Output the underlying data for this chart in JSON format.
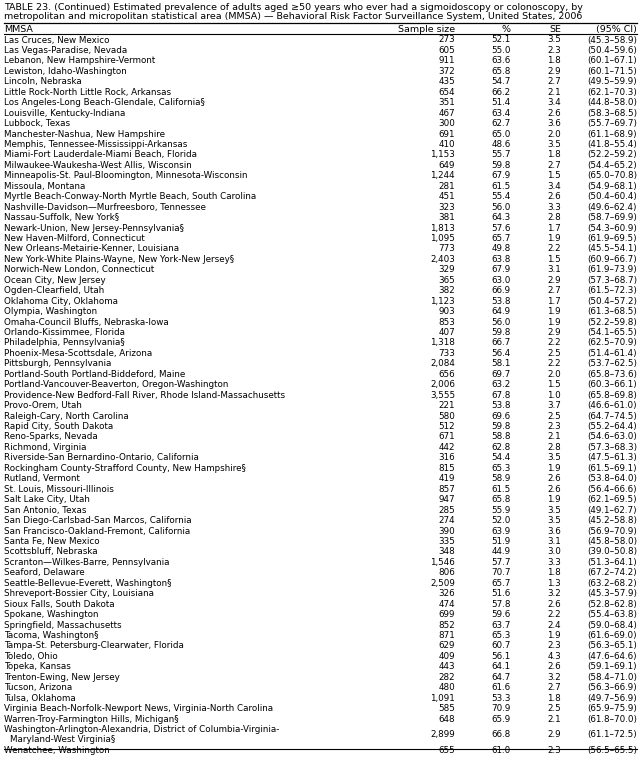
{
  "title_line1": "TABLE 23. (Continued) Estimated prevalence of adults aged ≥50 years who ever had a sigmoidoscopy or colonoscopy, by",
  "title_line2": "metropolitan and micropolitan statistical area (MMSA) — Behavioral Risk Factor Surveillance System, United States, 2006",
  "headers": [
    "MMSA",
    "Sample size",
    "%",
    "SE",
    "(95% CI)"
  ],
  "rows": [
    [
      "Las Cruces, New Mexico",
      "273",
      "52.1",
      "3.5",
      "(45.3–58.9)"
    ],
    [
      "Las Vegas-Paradise, Nevada",
      "605",
      "55.0",
      "2.3",
      "(50.4–59.6)"
    ],
    [
      "Lebanon, New Hampshire-Vermont",
      "911",
      "63.6",
      "1.8",
      "(60.1–67.1)"
    ],
    [
      "Lewiston, Idaho-Washington",
      "372",
      "65.8",
      "2.9",
      "(60.1–71.5)"
    ],
    [
      "Lincoln, Nebraska",
      "435",
      "54.7",
      "2.7",
      "(49.5–59.9)"
    ],
    [
      "Little Rock-North Little Rock, Arkansas",
      "654",
      "66.2",
      "2.1",
      "(62.1–70.3)"
    ],
    [
      "Los Angeles-Long Beach-Glendale, California§",
      "351",
      "51.4",
      "3.4",
      "(44.8–58.0)"
    ],
    [
      "Louisville, Kentucky-Indiana",
      "467",
      "63.4",
      "2.6",
      "(58.3–68.5)"
    ],
    [
      "Lubbock, Texas",
      "300",
      "62.7",
      "3.6",
      "(55.7–69.7)"
    ],
    [
      "Manchester-Nashua, New Hampshire",
      "691",
      "65.0",
      "2.0",
      "(61.1–68.9)"
    ],
    [
      "Memphis, Tennessee-Mississippi-Arkansas",
      "410",
      "48.6",
      "3.5",
      "(41.8–55.4)"
    ],
    [
      "Miami-Fort Lauderdale-Miami Beach, Florida",
      "1,153",
      "55.7",
      "1.8",
      "(52.2–59.2)"
    ],
    [
      "Milwaukee-Waukesha-West Allis, Wisconsin",
      "649",
      "59.8",
      "2.7",
      "(54.4–65.2)"
    ],
    [
      "Minneapolis-St. Paul-Bloomington, Minnesota-Wisconsin",
      "1,244",
      "67.9",
      "1.5",
      "(65.0–70.8)"
    ],
    [
      "Missoula, Montana",
      "281",
      "61.5",
      "3.4",
      "(54.9–68.1)"
    ],
    [
      "Myrtle Beach-Conway-North Myrtle Beach, South Carolina",
      "451",
      "55.4",
      "2.6",
      "(50.4–60.4)"
    ],
    [
      "Nashville-Davidson—Murfreesboro, Tennessee",
      "323",
      "56.0",
      "3.3",
      "(49.6–62.4)"
    ],
    [
      "Nassau-Suffolk, New York§",
      "381",
      "64.3",
      "2.8",
      "(58.7–69.9)"
    ],
    [
      "Newark-Union, New Jersey-Pennsylvania§",
      "1,813",
      "57.6",
      "1.7",
      "(54.3–60.9)"
    ],
    [
      "New Haven-Milford, Connecticut",
      "1,095",
      "65.7",
      "1.9",
      "(61.9–69.5)"
    ],
    [
      "New Orleans-Metairie-Kenner, Louisiana",
      "773",
      "49.8",
      "2.2",
      "(45.5–54.1)"
    ],
    [
      "New York-White Plains-Wayne, New York-New Jersey§",
      "2,403",
      "63.8",
      "1.5",
      "(60.9–66.7)"
    ],
    [
      "Norwich-New London, Connecticut",
      "329",
      "67.9",
      "3.1",
      "(61.9–73.9)"
    ],
    [
      "Ocean City, New Jersey",
      "365",
      "63.0",
      "2.9",
      "(57.3–68.7)"
    ],
    [
      "Ogden-Clearfield, Utah",
      "382",
      "66.9",
      "2.7",
      "(61.5–72.3)"
    ],
    [
      "Oklahoma City, Oklahoma",
      "1,123",
      "53.8",
      "1.7",
      "(50.4–57.2)"
    ],
    [
      "Olympia, Washington",
      "903",
      "64.9",
      "1.9",
      "(61.3–68.5)"
    ],
    [
      "Omaha-Council Bluffs, Nebraska-Iowa",
      "853",
      "56.0",
      "1.9",
      "(52.2–59.8)"
    ],
    [
      "Orlando-Kissimmee, Florida",
      "407",
      "59.8",
      "2.9",
      "(54.1–65.5)"
    ],
    [
      "Philadelphia, Pennsylvania§",
      "1,318",
      "66.7",
      "2.2",
      "(62.5–70.9)"
    ],
    [
      "Phoenix-Mesa-Scottsdale, Arizona",
      "733",
      "56.4",
      "2.5",
      "(51.4–61.4)"
    ],
    [
      "Pittsburgh, Pennsylvania",
      "2,084",
      "58.1",
      "2.2",
      "(53.7–62.5)"
    ],
    [
      "Portland-South Portland-Biddeford, Maine",
      "656",
      "69.7",
      "2.0",
      "(65.8–73.6)"
    ],
    [
      "Portland-Vancouver-Beaverton, Oregon-Washington",
      "2,006",
      "63.2",
      "1.5",
      "(60.3–66.1)"
    ],
    [
      "Providence-New Bedford-Fall River, Rhode Island-Massachusetts",
      "3,555",
      "67.8",
      "1.0",
      "(65.8–69.8)"
    ],
    [
      "Provo-Orem, Utah",
      "221",
      "53.8",
      "3.7",
      "(46.6–61.0)"
    ],
    [
      "Raleigh-Cary, North Carolina",
      "580",
      "69.6",
      "2.5",
      "(64.7–74.5)"
    ],
    [
      "Rapid City, South Dakota",
      "512",
      "59.8",
      "2.3",
      "(55.2–64.4)"
    ],
    [
      "Reno-Sparks, Nevada",
      "671",
      "58.8",
      "2.1",
      "(54.6–63.0)"
    ],
    [
      "Richmond, Virginia",
      "442",
      "62.8",
      "2.8",
      "(57.3–68.3)"
    ],
    [
      "Riverside-San Bernardino-Ontario, California",
      "316",
      "54.4",
      "3.5",
      "(47.5–61.3)"
    ],
    [
      "Rockingham County-Strafford County, New Hampshire§",
      "815",
      "65.3",
      "1.9",
      "(61.5–69.1)"
    ],
    [
      "Rutland, Vermont",
      "419",
      "58.9",
      "2.6",
      "(53.8–64.0)"
    ],
    [
      "St. Louis, Missouri-Illinois",
      "857",
      "61.5",
      "2.6",
      "(56.4–66.6)"
    ],
    [
      "Salt Lake City, Utah",
      "947",
      "65.8",
      "1.9",
      "(62.1–69.5)"
    ],
    [
      "San Antonio, Texas",
      "285",
      "55.9",
      "3.5",
      "(49.1–62.7)"
    ],
    [
      "San Diego-Carlsbad-San Marcos, California",
      "274",
      "52.0",
      "3.5",
      "(45.2–58.8)"
    ],
    [
      "San Francisco-Oakland-Fremont, California",
      "390",
      "63.9",
      "3.6",
      "(56.9–70.9)"
    ],
    [
      "Santa Fe, New Mexico",
      "335",
      "51.9",
      "3.1",
      "(45.8–58.0)"
    ],
    [
      "Scottsbluff, Nebraska",
      "348",
      "44.9",
      "3.0",
      "(39.0–50.8)"
    ],
    [
      "Scranton—Wilkes-Barre, Pennsylvania",
      "1,546",
      "57.7",
      "3.3",
      "(51.3–64.1)"
    ],
    [
      "Seaford, Delaware",
      "806",
      "70.7",
      "1.8",
      "(67.2–74.2)"
    ],
    [
      "Seattle-Bellevue-Everett, Washington§",
      "2,509",
      "65.7",
      "1.3",
      "(63.2–68.2)"
    ],
    [
      "Shreveport-Bossier City, Louisiana",
      "326",
      "51.6",
      "3.2",
      "(45.3–57.9)"
    ],
    [
      "Sioux Falls, South Dakota",
      "474",
      "57.8",
      "2.6",
      "(52.8–62.8)"
    ],
    [
      "Spokane, Washington",
      "699",
      "59.6",
      "2.2",
      "(55.4–63.8)"
    ],
    [
      "Springfield, Massachusetts",
      "852",
      "63.7",
      "2.4",
      "(59.0–68.4)"
    ],
    [
      "Tacoma, Washington§",
      "871",
      "65.3",
      "1.9",
      "(61.6–69.0)"
    ],
    [
      "Tampa-St. Petersburg-Clearwater, Florida",
      "629",
      "60.7",
      "2.3",
      "(56.3–65.1)"
    ],
    [
      "Toledo, Ohio",
      "409",
      "56.1",
      "4.3",
      "(47.6–64.6)"
    ],
    [
      "Topeka, Kansas",
      "443",
      "64.1",
      "2.6",
      "(59.1–69.1)"
    ],
    [
      "Trenton-Ewing, New Jersey",
      "282",
      "64.7",
      "3.2",
      "(58.4–71.0)"
    ],
    [
      "Tucson, Arizona",
      "480",
      "61.6",
      "2.7",
      "(56.3–66.9)"
    ],
    [
      "Tulsa, Oklahoma",
      "1,091",
      "53.3",
      "1.8",
      "(49.7–56.9)"
    ],
    [
      "Virginia Beach-Norfolk-Newport News, Virginia-North Carolina",
      "585",
      "70.9",
      "2.5",
      "(65.9–75.9)"
    ],
    [
      "Warren-Troy-Farmington Hills, Michigan§",
      "648",
      "65.9",
      "2.1",
      "(61.8–70.0)"
    ],
    [
      "Washington-Arlington-Alexandria, District of Columbia-Virginia-\n  Maryland-West Virginia§",
      "2,899",
      "66.8",
      "2.9",
      "(61.1–72.5)"
    ],
    [
      "Wenatchee, Washington",
      "655",
      "61.0",
      "2.3",
      "(56.5–65.5)"
    ]
  ],
  "bg_color": "#ffffff",
  "font_size": 6.3,
  "title_font_size": 6.8,
  "header_font_size": 6.8
}
